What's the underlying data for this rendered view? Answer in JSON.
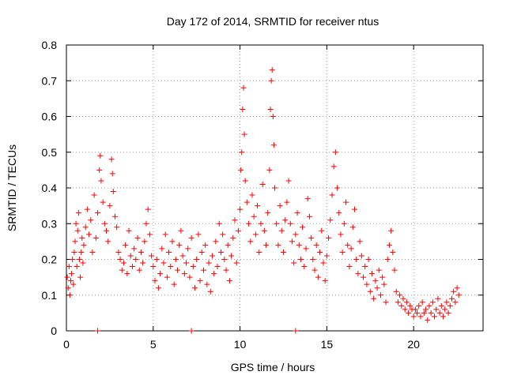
{
  "chart_data": {
    "type": "scatter",
    "title": "Day 172 of 2014, SRMTID for receiver ntus",
    "xlabel": "GPS time / hours",
    "ylabel": "SRMTID / TECUs",
    "xlim": [
      0,
      24
    ],
    "ylim": [
      0,
      0.8
    ],
    "x_ticks": [
      0,
      5,
      10,
      15,
      20
    ],
    "y_ticks": [
      0,
      0.1,
      0.2,
      0.3,
      0.4,
      0.5,
      0.6,
      0.7,
      0.8
    ],
    "x_tick_labels": [
      "0",
      "5",
      "10",
      "15",
      "20"
    ],
    "y_tick_labels": [
      "0",
      "0.1",
      "0.2",
      "0.3",
      "0.4",
      "0.5",
      "0.6",
      "0.7",
      "0.8"
    ],
    "grid": true,
    "marker": "+",
    "color": "#ff0000",
    "series": [
      {
        "name": "SRMTID",
        "points": [
          [
            0.05,
            0.15
          ],
          [
            0.1,
            0.12
          ],
          [
            0.15,
            0.18
          ],
          [
            0.2,
            0.1
          ],
          [
            0.25,
            0.14
          ],
          [
            0.3,
            0.16
          ],
          [
            0.35,
            0.2
          ],
          [
            0.4,
            0.13
          ],
          [
            0.45,
            0.22
          ],
          [
            0.5,
            0.25
          ],
          [
            0.55,
            0.3
          ],
          [
            0.6,
            0.18
          ],
          [
            0.65,
            0.28
          ],
          [
            0.7,
            0.33
          ],
          [
            0.75,
            0.2
          ],
          [
            0.8,
            0.15
          ],
          [
            0.85,
            0.22
          ],
          [
            0.9,
            0.26
          ],
          [
            0.95,
            0.19
          ],
          [
            1.0,
            0.24
          ],
          [
            1.1,
            0.29
          ],
          [
            1.2,
            0.34
          ],
          [
            1.3,
            0.27
          ],
          [
            1.4,
            0.31
          ],
          [
            1.5,
            0.22
          ],
          [
            1.6,
            0.38
          ],
          [
            1.7,
            0.26
          ],
          [
            1.8,
            0.33
          ],
          [
            1.9,
            0.45
          ],
          [
            1.95,
            0.49
          ],
          [
            2.0,
            0.42
          ],
          [
            2.1,
            0.36
          ],
          [
            2.2,
            0.3
          ],
          [
            2.3,
            0.28
          ],
          [
            2.4,
            0.25
          ],
          [
            2.5,
            0.35
          ],
          [
            2.6,
            0.48
          ],
          [
            2.65,
            0.44
          ],
          [
            2.7,
            0.39
          ],
          [
            2.8,
            0.32
          ],
          [
            2.9,
            0.29
          ],
          [
            3.0,
            0.22
          ],
          [
            3.1,
            0.2
          ],
          [
            3.2,
            0.17
          ],
          [
            3.3,
            0.19
          ],
          [
            3.4,
            0.24
          ],
          [
            3.5,
            0.16
          ],
          [
            3.6,
            0.28
          ],
          [
            3.7,
            0.21
          ],
          [
            3.8,
            0.18
          ],
          [
            3.9,
            0.23
          ],
          [
            4.0,
            0.2
          ],
          [
            4.1,
            0.26
          ],
          [
            4.2,
            0.17
          ],
          [
            4.3,
            0.22
          ],
          [
            4.4,
            0.19
          ],
          [
            4.5,
            0.25
          ],
          [
            4.6,
            0.3
          ],
          [
            4.7,
            0.34
          ],
          [
            4.8,
            0.27
          ],
          [
            4.9,
            0.21
          ],
          [
            5.0,
            0.18
          ],
          [
            5.1,
            0.14
          ],
          [
            5.2,
            0.2
          ],
          [
            5.3,
            0.12
          ],
          [
            5.4,
            0.16
          ],
          [
            5.5,
            0.23
          ],
          [
            5.6,
            0.19
          ],
          [
            5.7,
            0.27
          ],
          [
            5.8,
            0.15
          ],
          [
            5.9,
            0.22
          ],
          [
            6.0,
            0.18
          ],
          [
            6.1,
            0.25
          ],
          [
            6.2,
            0.13
          ],
          [
            6.3,
            0.2
          ],
          [
            6.4,
            0.17
          ],
          [
            6.5,
            0.24
          ],
          [
            6.6,
            0.28
          ],
          [
            6.7,
            0.21
          ],
          [
            6.8,
            0.16
          ],
          [
            6.9,
            0.19
          ],
          [
            7.0,
            0.23
          ],
          [
            7.1,
            0.15
          ],
          [
            7.2,
            0.26
          ],
          [
            7.3,
            0.18
          ],
          [
            7.4,
            0.12
          ],
          [
            7.5,
            0.2
          ],
          [
            7.6,
            0.27
          ],
          [
            7.7,
            0.14
          ],
          [
            7.8,
            0.22
          ],
          [
            7.9,
            0.17
          ],
          [
            8.0,
            0.24
          ],
          [
            8.1,
            0.13
          ],
          [
            8.2,
            0.19
          ],
          [
            8.3,
            0.11
          ],
          [
            8.4,
            0.21
          ],
          [
            8.5,
            0.16
          ],
          [
            8.6,
            0.25
          ],
          [
            8.7,
            0.18
          ],
          [
            8.8,
            0.3
          ],
          [
            8.9,
            0.22
          ],
          [
            9.0,
            0.27
          ],
          [
            9.1,
            0.2
          ],
          [
            9.2,
            0.17
          ],
          [
            9.3,
            0.24
          ],
          [
            9.4,
            0.14
          ],
          [
            9.5,
            0.21
          ],
          [
            9.6,
            0.26
          ],
          [
            9.7,
            0.31
          ],
          [
            9.8,
            0.19
          ],
          [
            9.9,
            0.28
          ],
          [
            10.0,
            0.34
          ],
          [
            10.05,
            0.45
          ],
          [
            10.1,
            0.5
          ],
          [
            10.15,
            0.62
          ],
          [
            10.2,
            0.68
          ],
          [
            10.25,
            0.55
          ],
          [
            10.3,
            0.42
          ],
          [
            10.4,
            0.36
          ],
          [
            10.5,
            0.3
          ],
          [
            10.6,
            0.25
          ],
          [
            10.7,
            0.38
          ],
          [
            10.8,
            0.32
          ],
          [
            10.9,
            0.27
          ],
          [
            11.0,
            0.35
          ],
          [
            11.1,
            0.22
          ],
          [
            11.2,
            0.3
          ],
          [
            11.3,
            0.41
          ],
          [
            11.4,
            0.28
          ],
          [
            11.5,
            0.24
          ],
          [
            11.6,
            0.33
          ],
          [
            11.7,
            0.45
          ],
          [
            11.75,
            0.62
          ],
          [
            11.8,
            0.7
          ],
          [
            11.85,
            0.73
          ],
          [
            11.9,
            0.6
          ],
          [
            11.95,
            0.52
          ],
          [
            12.0,
            0.4
          ],
          [
            12.1,
            0.3
          ],
          [
            12.2,
            0.24
          ],
          [
            12.3,
            0.35
          ],
          [
            12.4,
            0.28
          ],
          [
            12.5,
            0.22
          ],
          [
            12.6,
            0.31
          ],
          [
            12.7,
            0.36
          ],
          [
            12.8,
            0.42
          ],
          [
            12.9,
            0.3
          ],
          [
            13.0,
            0.25
          ],
          [
            13.1,
            0.19
          ],
          [
            13.2,
            0.27
          ],
          [
            13.3,
            0.33
          ],
          [
            13.4,
            0.24
          ],
          [
            13.5,
            0.2
          ],
          [
            13.6,
            0.29
          ],
          [
            13.7,
            0.18
          ],
          [
            13.8,
            0.23
          ],
          [
            13.9,
            0.37
          ],
          [
            14.0,
            0.32
          ],
          [
            14.1,
            0.26
          ],
          [
            14.2,
            0.2
          ],
          [
            14.3,
            0.17
          ],
          [
            14.4,
            0.24
          ],
          [
            14.5,
            0.15
          ],
          [
            14.6,
            0.22
          ],
          [
            14.7,
            0.28
          ],
          [
            14.8,
            0.19
          ],
          [
            14.9,
            0.14
          ],
          [
            15.0,
            0.21
          ],
          [
            15.1,
            0.26
          ],
          [
            15.2,
            0.31
          ],
          [
            15.3,
            0.38
          ],
          [
            15.4,
            0.46
          ],
          [
            15.5,
            0.5
          ],
          [
            15.6,
            0.4
          ],
          [
            15.7,
            0.33
          ],
          [
            15.8,
            0.27
          ],
          [
            15.9,
            0.22
          ],
          [
            16.0,
            0.3
          ],
          [
            16.1,
            0.36
          ],
          [
            16.2,
            0.24
          ],
          [
            16.3,
            0.18
          ],
          [
            16.4,
            0.23
          ],
          [
            16.5,
            0.29
          ],
          [
            16.6,
            0.34
          ],
          [
            16.7,
            0.2
          ],
          [
            16.8,
            0.16
          ],
          [
            16.9,
            0.25
          ],
          [
            17.0,
            0.21
          ],
          [
            17.1,
            0.15
          ],
          [
            17.2,
            0.18
          ],
          [
            17.3,
            0.13
          ],
          [
            17.4,
            0.2
          ],
          [
            17.5,
            0.11
          ],
          [
            17.6,
            0.16
          ],
          [
            17.7,
            0.09
          ],
          [
            17.8,
            0.14
          ],
          [
            17.9,
            0.12
          ],
          [
            18.0,
            0.17
          ],
          [
            18.1,
            0.1
          ],
          [
            18.2,
            0.15
          ],
          [
            18.3,
            0.13
          ],
          [
            18.4,
            0.08
          ],
          [
            18.5,
            0.2
          ],
          [
            18.6,
            0.24
          ],
          [
            18.7,
            0.28
          ],
          [
            18.8,
            0.22
          ],
          [
            18.9,
            0.17
          ],
          [
            19.0,
            0.11
          ],
          [
            19.1,
            0.08
          ],
          [
            19.2,
            0.1
          ],
          [
            19.3,
            0.07
          ],
          [
            19.4,
            0.09
          ],
          [
            19.5,
            0.06
          ],
          [
            19.6,
            0.08
          ],
          [
            19.7,
            0.05
          ],
          [
            19.8,
            0.07
          ],
          [
            19.9,
            0.06
          ],
          [
            20.0,
            0.04
          ],
          [
            20.1,
            0.06
          ],
          [
            20.2,
            0.05
          ],
          [
            20.3,
            0.07
          ],
          [
            20.4,
            0.04
          ],
          [
            20.5,
            0.08
          ],
          [
            20.6,
            0.05
          ],
          [
            20.7,
            0.06
          ],
          [
            20.8,
            0.03
          ],
          [
            20.9,
            0.07
          ],
          [
            21.0,
            0.05
          ],
          [
            21.1,
            0.08
          ],
          [
            21.2,
            0.04
          ],
          [
            21.3,
            0.06
          ],
          [
            21.4,
            0.09
          ],
          [
            21.5,
            0.05
          ],
          [
            21.6,
            0.07
          ],
          [
            21.7,
            0.04
          ],
          [
            21.8,
            0.06
          ],
          [
            21.9,
            0.08
          ],
          [
            22.0,
            0.05
          ],
          [
            22.1,
            0.07
          ],
          [
            22.2,
            0.09
          ],
          [
            22.3,
            0.11
          ],
          [
            22.4,
            0.08
          ],
          [
            22.5,
            0.12
          ],
          [
            22.6,
            0.1
          ],
          [
            1.8,
            0.0
          ],
          [
            7.2,
            0.0
          ],
          [
            13.2,
            0.0
          ]
        ]
      }
    ]
  }
}
